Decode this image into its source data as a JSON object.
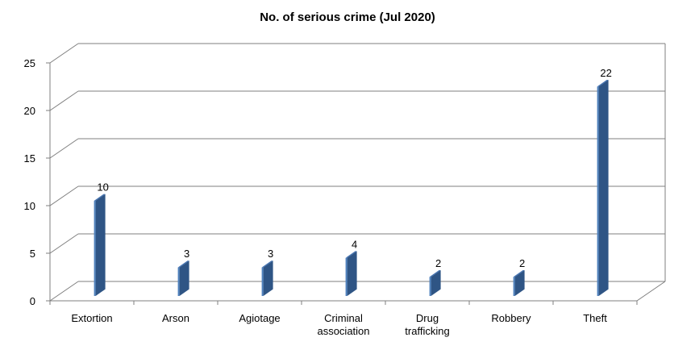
{
  "chart_data": {
    "type": "bar",
    "title": "No. of serious crime (Jul 2020)",
    "categories": [
      [
        "Extortion"
      ],
      [
        "Arson"
      ],
      [
        "Agiotage"
      ],
      [
        "Criminal",
        "association"
      ],
      [
        "Drug",
        "trafficking"
      ],
      [
        "Robbery"
      ],
      [
        "Theft"
      ]
    ],
    "values": [
      10,
      3,
      3,
      4,
      2,
      2,
      22
    ],
    "data_labels": [
      "10",
      "3",
      "3",
      "4",
      "2",
      "2",
      "22"
    ],
    "ylim": [
      0,
      25
    ],
    "yticks": [
      0,
      5,
      10,
      15,
      20,
      25
    ],
    "ytick_labels": [
      "0",
      "5",
      "10",
      "15",
      "20",
      "25"
    ],
    "xlabel": "",
    "ylabel": "",
    "grid": true,
    "legend": "none",
    "style": "3d-column",
    "colors": {
      "bar_front": "#4F81BD",
      "bar_top": "#3F6FAF",
      "bar_side": "#2F5585",
      "gridline": "#7F7F7F"
    }
  }
}
